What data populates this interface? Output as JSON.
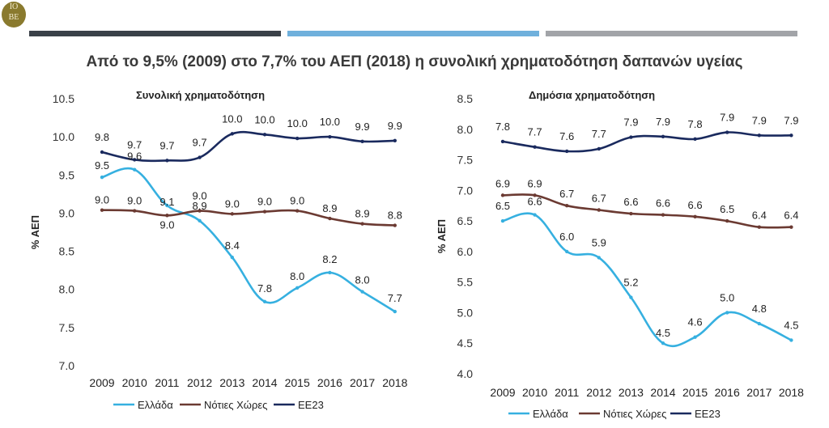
{
  "logo": {
    "top": "IO",
    "bottom": "BE"
  },
  "title": "Από το 9,5% (2009) στο 7,7% του ΑΕΠ (2018) η συνολική χρηματοδότηση δαπανών υγείας",
  "colors": {
    "bar1": "#3a4148",
    "bar2": "#6fb0dc",
    "bar3": "#a2a4a8"
  },
  "chart_data": [
    {
      "type": "line",
      "title": "Συνολική χρηματοδότηση",
      "ylabel": "% ΑΕΠ",
      "ylim": [
        7.0,
        10.5
      ],
      "yticks": [
        "7.0",
        "7.5",
        "8.0",
        "8.5",
        "9.0",
        "9.5",
        "10.0",
        "10.5"
      ],
      "x": [
        "2009",
        "2010",
        "2011",
        "2012",
        "2013",
        "2014",
        "2015",
        "2016",
        "2017",
        "2018"
      ],
      "series": [
        {
          "name": "Ελλάδα",
          "color": "#36b0e0",
          "values": [
            9.47,
            9.57,
            9.1,
            8.9,
            8.42,
            7.84,
            8.02,
            8.22,
            7.97,
            7.71
          ],
          "labels": [
            "9.5",
            "9.6",
            "9.1",
            "8.9",
            "8.4",
            "7.8",
            "8.0",
            "8.2",
            "8.0",
            "7.7"
          ]
        },
        {
          "name": "Νότιες Χώρες",
          "color": "#6b3a32",
          "values": [
            9.04,
            9.03,
            8.97,
            9.03,
            8.99,
            9.02,
            9.03,
            8.93,
            8.86,
            8.84
          ],
          "labels": [
            "9.0",
            "9.0",
            "9.0",
            "9.0",
            "9.0",
            "9.0",
            "9.0",
            "8.9",
            "8.9",
            "8.8"
          ]
        },
        {
          "name": "ΕΕ23",
          "color": "#1a2a5e",
          "values": [
            9.8,
            9.7,
            9.69,
            9.73,
            10.04,
            10.03,
            9.98,
            10.0,
            9.94,
            9.95
          ],
          "labels": [
            "9.8",
            "9.7",
            "9.7",
            "9.7",
            "10.0",
            "10.0",
            "10.0",
            "10.0",
            "9.9",
            "9.9"
          ]
        }
      ]
    },
    {
      "type": "line",
      "title": "Δημόσια χρηματοδότηση",
      "ylabel": "% ΑΕΠ",
      "ylim": [
        4.0,
        8.5
      ],
      "yticks": [
        "4.0",
        "4.5",
        "5.0",
        "5.5",
        "6.0",
        "6.5",
        "7.0",
        "7.5",
        "8.0",
        "8.5"
      ],
      "x": [
        "2009",
        "2010",
        "2011",
        "2012",
        "2013",
        "2014",
        "2015",
        "2016",
        "2017",
        "2018"
      ],
      "series": [
        {
          "name": "Ελλάδα",
          "color": "#36b0e0",
          "values": [
            6.5,
            6.6,
            6.0,
            5.9,
            5.25,
            4.5,
            4.6,
            5.0,
            4.82,
            4.55
          ],
          "labels": [
            "6.5",
            "6.6",
            "6.0",
            "5.9",
            "5.2",
            "4.5",
            "4.6",
            "5.0",
            "4.8",
            "4.5"
          ]
        },
        {
          "name": "Νότιες Χώρες",
          "color": "#6b3a32",
          "values": [
            6.92,
            6.92,
            6.75,
            6.68,
            6.62,
            6.6,
            6.57,
            6.5,
            6.4,
            6.4
          ],
          "labels": [
            "6.9",
            "6.9",
            "6.7",
            "6.7",
            "6.6",
            "6.6",
            "6.6",
            "6.5",
            "6.4",
            "6.4"
          ]
        },
        {
          "name": "ΕΕ23",
          "color": "#1a2a5e",
          "values": [
            7.8,
            7.71,
            7.64,
            7.68,
            7.87,
            7.88,
            7.84,
            7.95,
            7.9,
            7.9
          ],
          "labels": [
            "7.8",
            "7.7",
            "7.6",
            "7.7",
            "7.9",
            "7.9",
            "7.8",
            "7.9",
            "7.9",
            "7.9"
          ]
        }
      ]
    }
  ]
}
